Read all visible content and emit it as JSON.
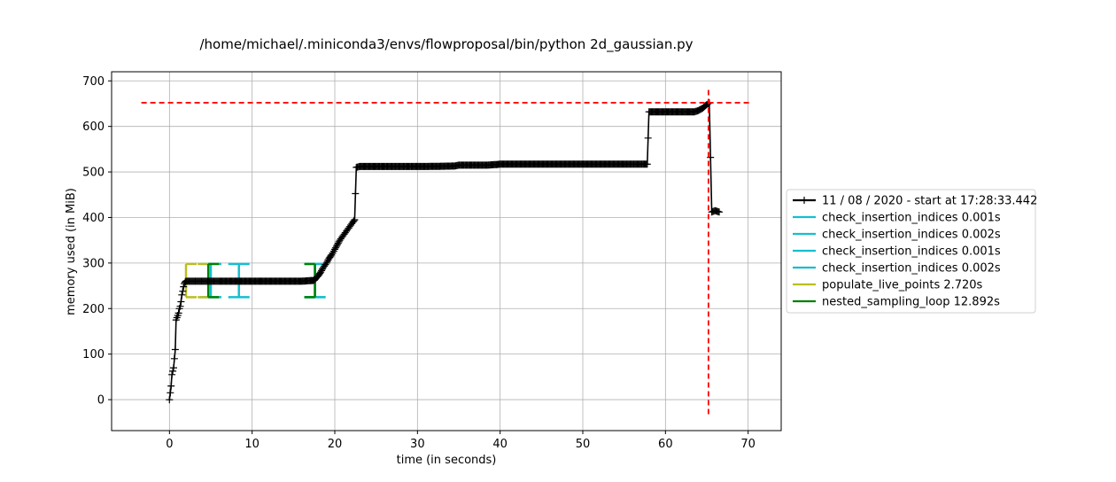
{
  "chart_data": {
    "type": "line",
    "title": "/home/michael/.miniconda3/envs/flowproposal/bin/python 2d_gaussian.py",
    "xlabel": "time (in seconds)",
    "ylabel": "memory used (in MiB)",
    "xlim": [
      -7,
      74
    ],
    "ylim": [
      -68,
      720
    ],
    "xticks": [
      0,
      10,
      20,
      30,
      40,
      50,
      60,
      70
    ],
    "yticks": [
      0,
      100,
      200,
      300,
      400,
      500,
      600,
      700
    ],
    "grid": true,
    "legend_position": "center-right outside",
    "series": [
      {
        "name": "11 / 08 / 2020 - start at 17:28:33.442",
        "color": "#000000",
        "marker": "+",
        "x": [
          0.0,
          0.1,
          0.2,
          0.3,
          0.5,
          0.7,
          0.8,
          1.0,
          1.1,
          1.2,
          1.3,
          1.4,
          1.5,
          1.6,
          1.7,
          1.8,
          1.9,
          2.0,
          2.5,
          3,
          4,
          5,
          6,
          8,
          10,
          12,
          14,
          16,
          17.5,
          18.0,
          18.3,
          18.6,
          19.0,
          19.3,
          19.6,
          20.0,
          20.3,
          20.6,
          21.0,
          21.4,
          21.8,
          22.2,
          22.4,
          22.6,
          23,
          25,
          28,
          31,
          34.5,
          35,
          38.5,
          40,
          45,
          50,
          55,
          57.8,
          58.0,
          60,
          62,
          63.5,
          64.0,
          64.5,
          65.0,
          65.3,
          65.6,
          66.0,
          66.5
        ],
        "y": [
          0,
          15,
          30,
          55,
          70,
          110,
          175,
          185,
          190,
          200,
          205,
          215,
          230,
          238,
          248,
          255,
          258,
          260,
          260,
          260,
          260,
          260,
          260,
          260,
          260,
          260,
          260,
          260,
          262,
          272,
          280,
          290,
          300,
          310,
          318,
          330,
          340,
          350,
          360,
          370,
          380,
          390,
          395,
          510,
          512,
          512,
          512,
          512,
          513,
          515,
          515,
          517,
          517,
          517,
          517,
          517,
          632,
          632,
          632,
          632,
          635,
          640,
          648,
          652,
          412,
          415,
          412
        ]
      }
    ],
    "intervals": [
      {
        "name": "check_insertion_indices 0.001s",
        "color": "#17becf",
        "start": 5.0,
        "end": 5.0,
        "y_low": 225,
        "y_high": 298
      },
      {
        "name": "check_insertion_indices 0.002s",
        "color": "#17becf",
        "start": 8.4,
        "end": 8.4,
        "y_low": 225,
        "y_high": 298
      },
      {
        "name": "check_insertion_indices 0.001s",
        "color": "#17becf",
        "start": 17.6,
        "end": 17.6,
        "y_low": 225,
        "y_high": 298
      },
      {
        "name": "check_insertion_indices 0.002s",
        "color": "#17becf",
        "start": 17.6,
        "end": 17.6,
        "y_low": 225,
        "y_high": 298
      },
      {
        "name": "populate_live_points 2.720s",
        "color": "#bcbd22",
        "start": 2.0,
        "end": 4.7,
        "y_low": 225,
        "y_high": 298
      },
      {
        "name": "nested_sampling_loop 12.892s",
        "color": "#008000",
        "start": 4.7,
        "end": 17.6,
        "y_low": 225,
        "y_high": 298
      }
    ],
    "max_memory": {
      "x": 65.2,
      "y": 652,
      "color": "#ff0000"
    }
  }
}
